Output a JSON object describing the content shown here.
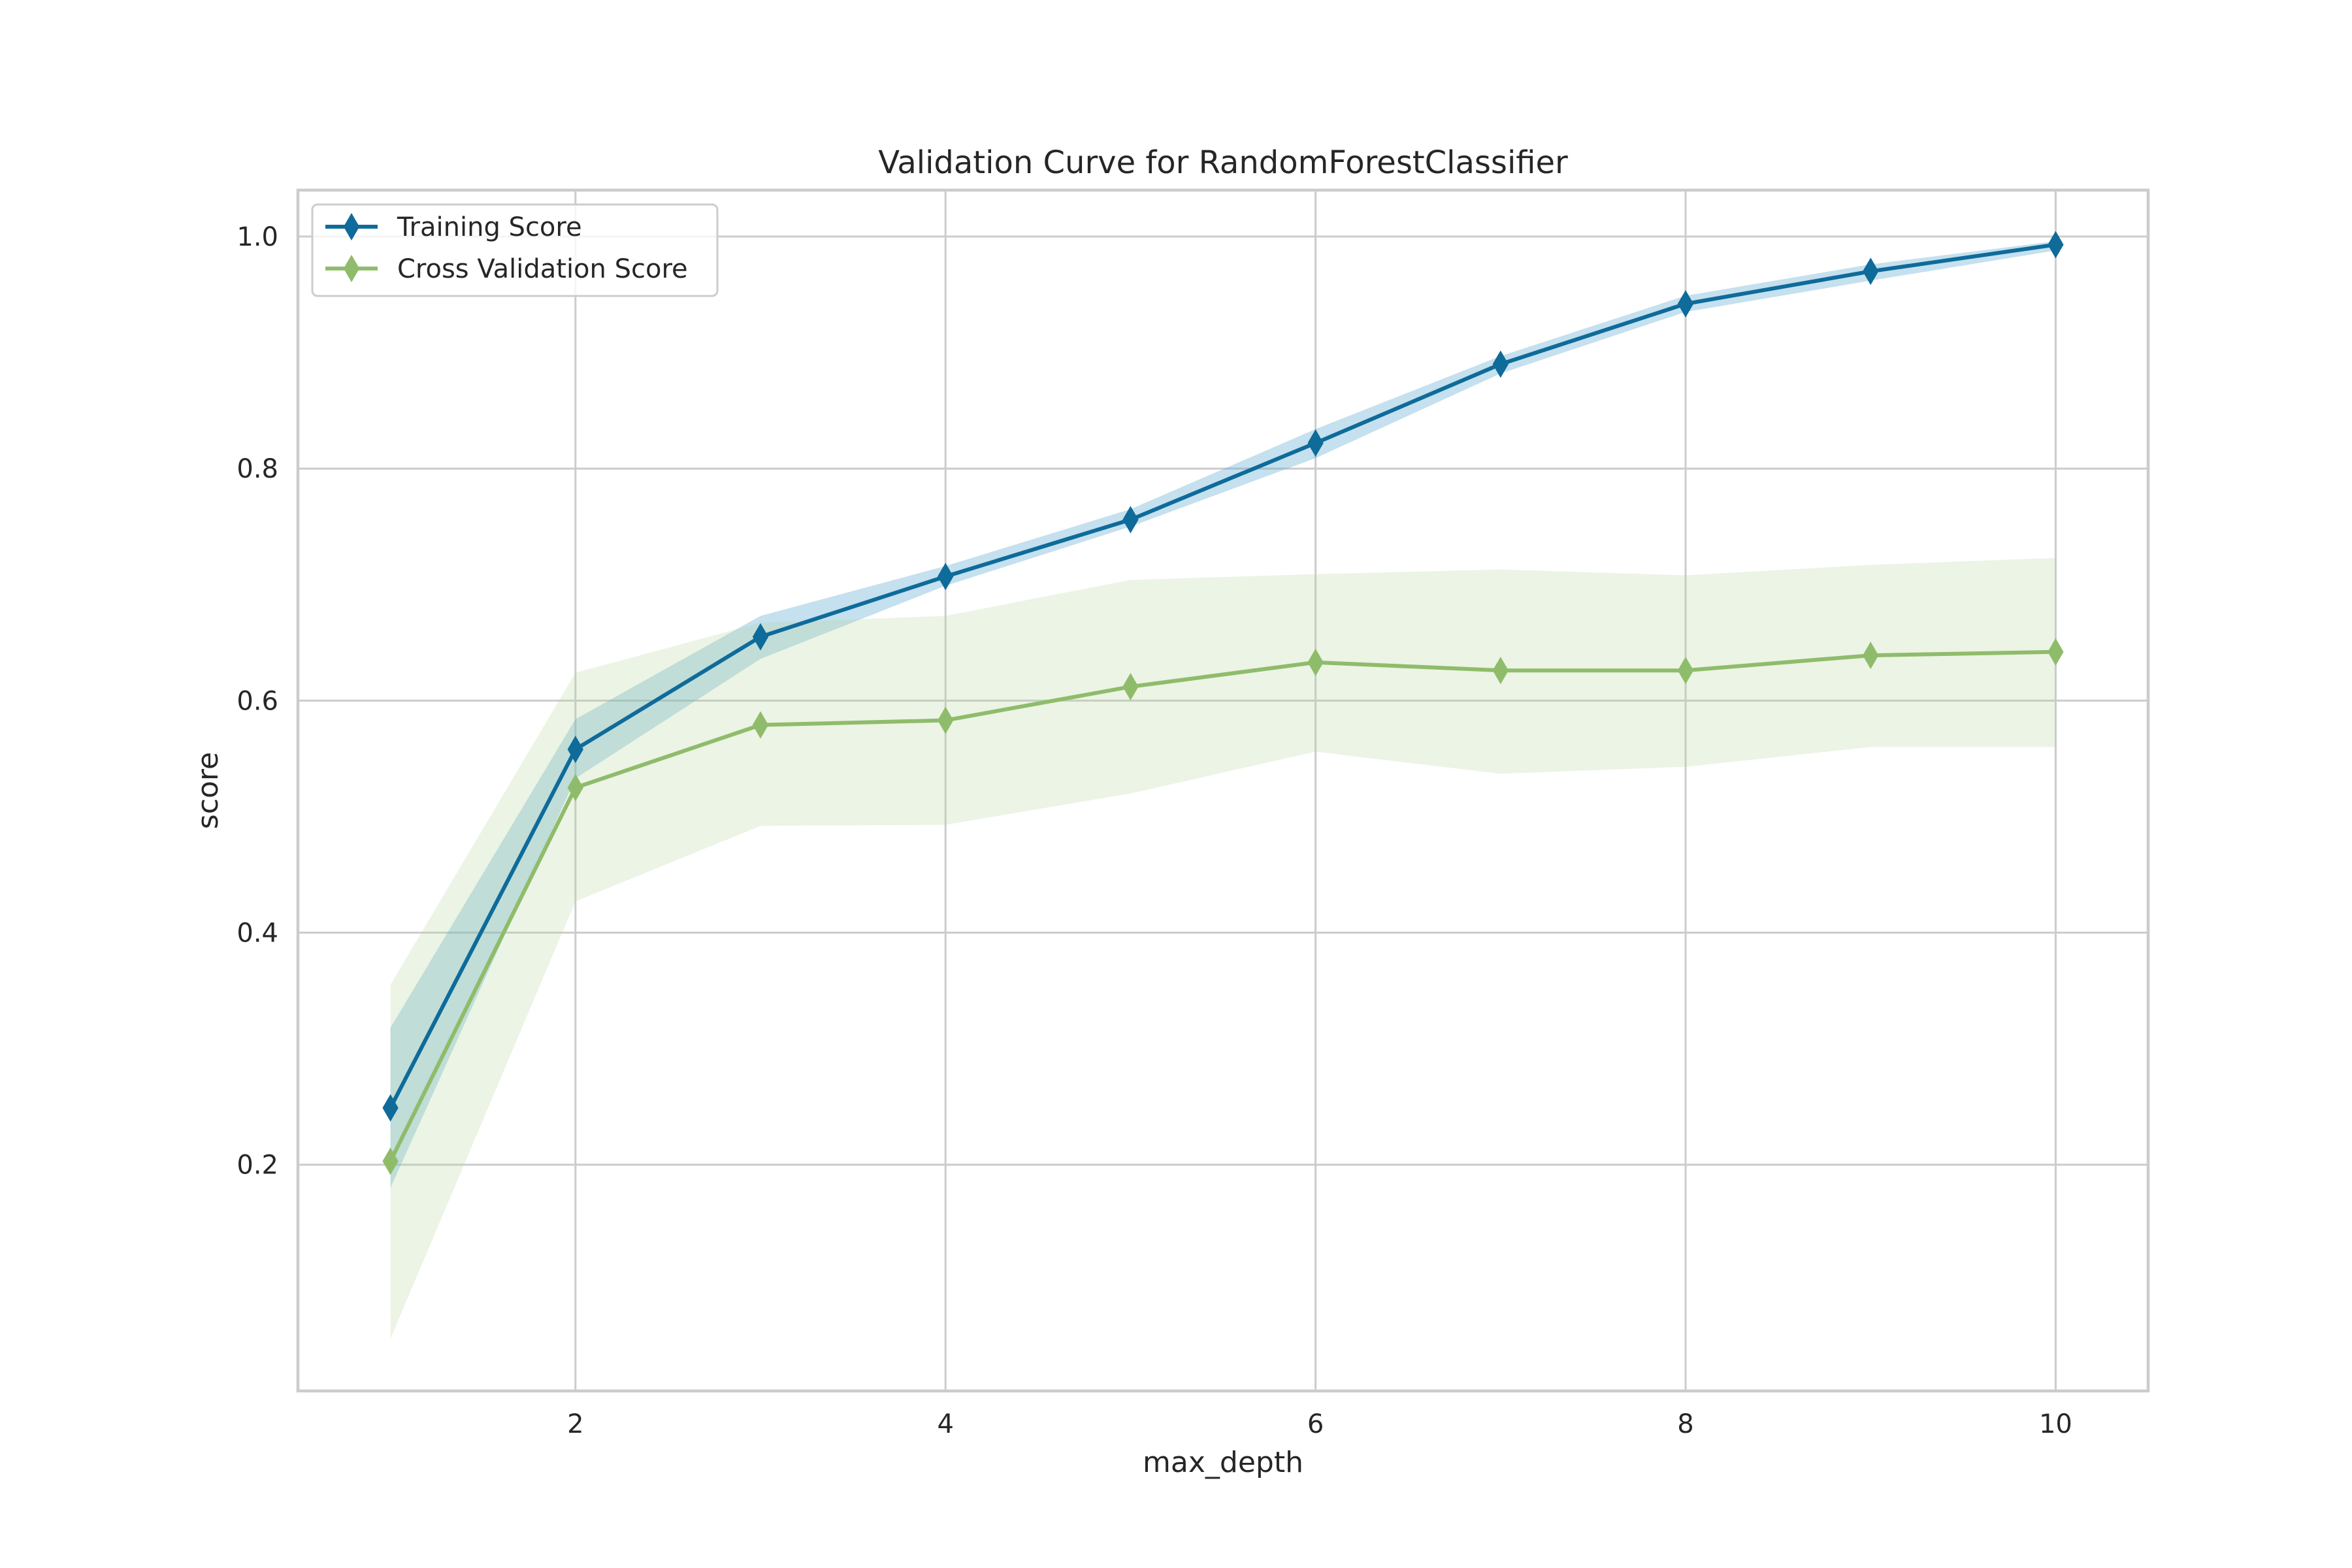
{
  "chart_data": {
    "type": "line",
    "title": "Validation Curve for RandomForestClassifier",
    "xlabel": "max_depth",
    "ylabel": "score",
    "xlim": [
      0.5,
      10.5
    ],
    "ylim": [
      0.005,
      1.04
    ],
    "x_ticks": [
      2,
      4,
      6,
      8,
      10
    ],
    "y_ticks": [
      0.2,
      0.4,
      0.6,
      0.8,
      1.0
    ],
    "x_tick_labels": [
      "2",
      "4",
      "6",
      "8",
      "10"
    ],
    "y_tick_labels": [
      "0.2",
      "0.4",
      "0.6",
      "0.8",
      "1.0"
    ],
    "grid": true,
    "legend_position": "top-left",
    "x": [
      1,
      2,
      3,
      4,
      5,
      6,
      7,
      8,
      9,
      10
    ],
    "series": [
      {
        "name": "Training Score",
        "color": "#0e6b9a",
        "band_color": "#5aa6cf",
        "marker": "diamond",
        "values": [
          0.249,
          0.558,
          0.655,
          0.707,
          0.756,
          0.822,
          0.89,
          0.942,
          0.97,
          0.993
        ],
        "lower": [
          0.18,
          0.533,
          0.636,
          0.699,
          0.75,
          0.809,
          0.882,
          0.935,
          0.962,
          0.988
        ],
        "upper": [
          0.318,
          0.584,
          0.673,
          0.716,
          0.765,
          0.834,
          0.897,
          0.949,
          0.976,
          0.996
        ]
      },
      {
        "name": "Cross Validation Score",
        "color": "#8fbc6b",
        "band_color": "#b5d396",
        "marker": "diamond",
        "values": [
          0.203,
          0.525,
          0.579,
          0.583,
          0.612,
          0.633,
          0.626,
          0.626,
          0.639,
          0.642
        ],
        "lower": [
          0.05,
          0.427,
          0.492,
          0.493,
          0.52,
          0.556,
          0.537,
          0.543,
          0.56,
          0.56
        ],
        "upper": [
          0.355,
          0.624,
          0.667,
          0.673,
          0.704,
          0.709,
          0.713,
          0.708,
          0.717,
          0.723
        ]
      }
    ]
  }
}
